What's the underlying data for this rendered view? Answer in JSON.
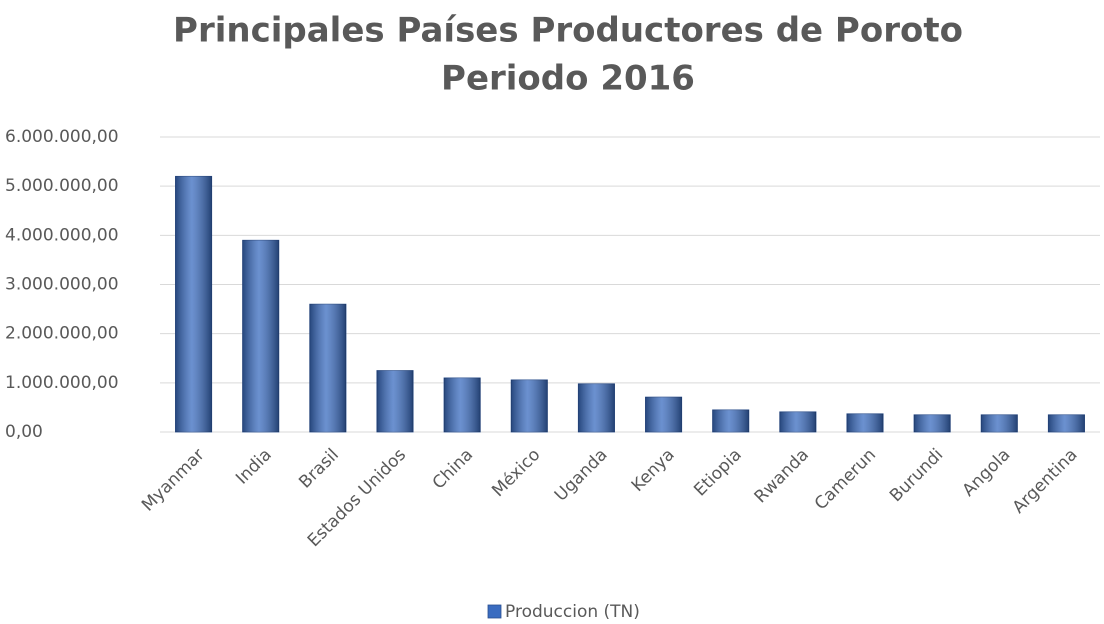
{
  "chart_data": {
    "type": "bar",
    "title": [
      "Principales Países Productores de Poroto",
      "Periodo 2016"
    ],
    "categories": [
      "Myanmar",
      "India",
      "Brasil",
      "Estados Unidos",
      "China",
      "México",
      "Uganda",
      "Kenya",
      "Etiopia",
      "Rwanda",
      "Camerun",
      "Burundi",
      "Angola",
      "Argentina"
    ],
    "series": [
      {
        "name": "Produccion (TN)",
        "color": "#3a6cc0",
        "values": [
          5200000,
          3900000,
          2600000,
          1250000,
          1100000,
          1060000,
          980000,
          710000,
          450000,
          410000,
          370000,
          350000,
          350000,
          350000
        ]
      }
    ],
    "ylim": [
      0,
      6000000
    ],
    "yticks": [
      {
        "value": 0,
        "label": "0,00"
      },
      {
        "value": 1000000,
        "label": "1.000.000,00"
      },
      {
        "value": 2000000,
        "label": "2.000.000,00"
      },
      {
        "value": 3000000,
        "label": "3.000.000,00"
      },
      {
        "value": 4000000,
        "label": "4.000.000,00"
      },
      {
        "value": 5000000,
        "label": "5.000.000,00"
      },
      {
        "value": 6000000,
        "label": "6.000.000,00"
      }
    ],
    "grid": true,
    "legend": "bottom"
  }
}
